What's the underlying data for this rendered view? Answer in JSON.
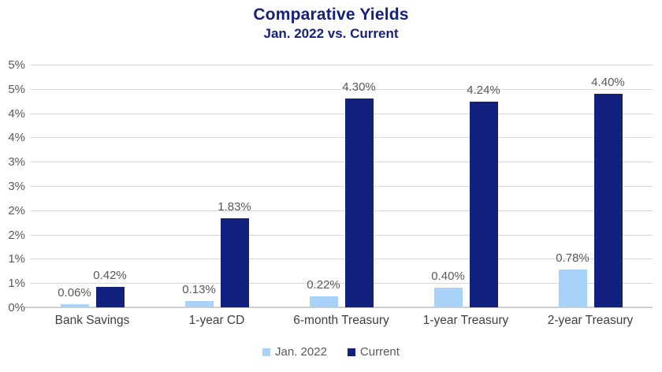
{
  "chart_data": {
    "type": "bar",
    "title": "Comparative Yields",
    "subtitle": "Jan. 2022 vs. Current",
    "categories": [
      "Bank Savings",
      "1-year CD",
      "6-month Treasury",
      "1-year Treasury",
      "2-year Treasury"
    ],
    "series": [
      {
        "name": "Jan. 2022",
        "color": "#a9d2f8",
        "values": [
          0.06,
          0.13,
          0.22,
          0.4,
          0.78
        ],
        "labels": [
          "0.06%",
          "0.13%",
          "0.22%",
          "0.40%",
          "0.78%"
        ]
      },
      {
        "name": "Current",
        "color": "#12217e",
        "values": [
          0.42,
          1.83,
          4.3,
          4.24,
          4.4
        ],
        "labels": [
          "0.42%",
          "1.83%",
          "4.30%",
          "4.24%",
          "4.40%"
        ]
      }
    ],
    "y_axis": {
      "min": 0,
      "max": 5,
      "step": 0.5,
      "tick_labels_top_to_bottom": [
        "5%",
        "5%",
        "4%",
        "4%",
        "3%",
        "3%",
        "2%",
        "2%",
        "1%",
        "1%",
        "0%"
      ]
    },
    "grid": true,
    "legend_position": "bottom",
    "colors": {
      "title": "#15217c",
      "gridline": "#d9d9d9",
      "axis_line": "#cfcfcf",
      "tick_label": "#595959",
      "data_label": "#595959",
      "category_label": "#3f3f3f",
      "legend_label": "#595959",
      "background": "#ffffff"
    }
  }
}
